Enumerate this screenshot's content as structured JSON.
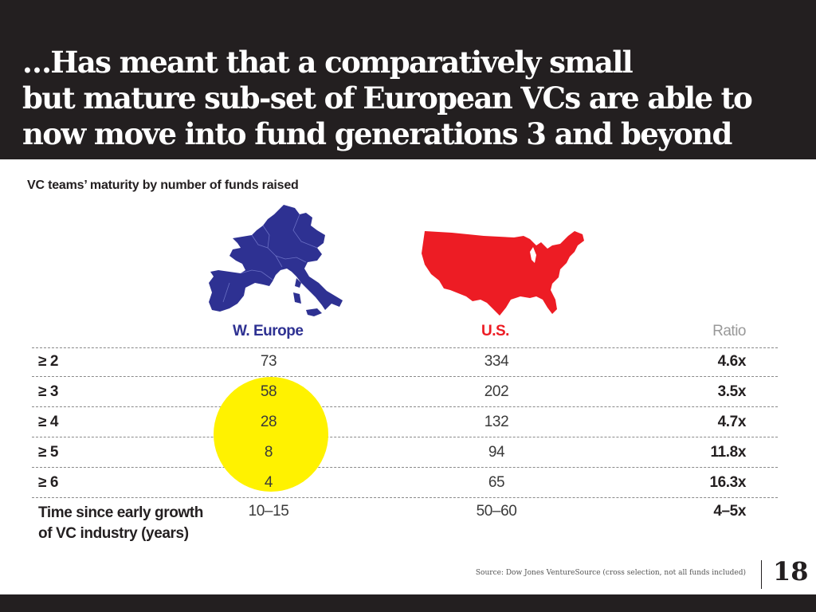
{
  "header": {
    "title_lines": [
      "…Has meant that a comparatively small",
      "but mature sub-set of European VCs are able to",
      "now move into fund generations 3 and beyond"
    ]
  },
  "subtitle": "VC teams’ maturity by number of funds raised",
  "colors": {
    "europe": "#2e3192",
    "us": "#ed1c24",
    "highlight": "#fff200",
    "ratio_head": "#999999",
    "dark": "#231f20"
  },
  "table": {
    "headers": {
      "europe": "W. Europe",
      "us": "U.S.",
      "ratio": "Ratio"
    },
    "rows": [
      {
        "label": "≥ 2",
        "europe": "73",
        "us": "334",
        "ratio": "4.6x"
      },
      {
        "label": "≥ 3",
        "europe": "58",
        "us": "202",
        "ratio": "3.5x"
      },
      {
        "label": "≥ 4",
        "europe": "28",
        "us": "132",
        "ratio": "4.7x"
      },
      {
        "label": "≥ 5",
        "europe": "8",
        "us": "94",
        "ratio": "11.8x"
      },
      {
        "label": "≥ 6",
        "europe": "4",
        "us": "65",
        "ratio": "16.3x"
      }
    ],
    "time_row": {
      "label_line1": "Time since early growth",
      "label_line2": "of VC industry (years)",
      "europe": "10–15",
      "us": "50–60",
      "ratio": "4–5x"
    }
  },
  "footer": {
    "source": "Source: Dow Jones VentureSource (cross selection, not all funds included)",
    "page_number": "18"
  }
}
